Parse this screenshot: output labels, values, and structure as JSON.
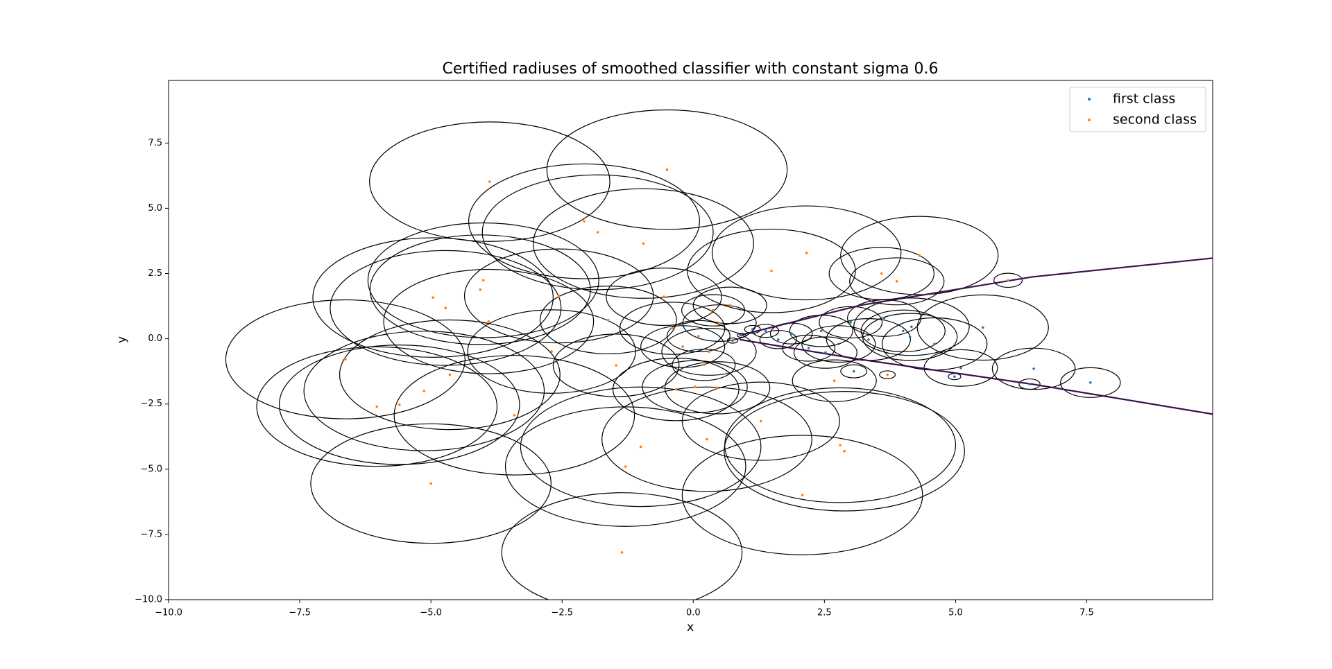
{
  "chart_data": {
    "type": "scatter",
    "title": "Certified radiuses of smoothed classifier with constant sigma 0.6",
    "x_label": "x",
    "y_label": "y",
    "xlim": [
      -10,
      9.9
    ],
    "ylim": [
      -10,
      9.9
    ],
    "xticks": [
      {
        "value": -10,
        "label": "−10.0"
      },
      {
        "value": -7.5,
        "label": "−7.5"
      },
      {
        "value": -5,
        "label": "−5.0"
      },
      {
        "value": -2.5,
        "label": "−2.5"
      },
      {
        "value": 0,
        "label": "0.0"
      },
      2.5,
      {
        "value": 5,
        "label": "5.0"
      },
      7.5
    ],
    "yticks": [
      {
        "value": -10,
        "label": "−10.0"
      },
      {
        "value": -7.5,
        "label": "−7.5"
      },
      {
        "value": -5,
        "label": "−5.0"
      },
      {
        "value": -2.5,
        "label": "−2.5"
      },
      {
        "value": 0,
        "label": "0.0"
      },
      2.5,
      {
        "value": 5,
        "label": "5.0"
      },
      7.5
    ],
    "legend": "upper right",
    "circle_color": "#000000",
    "series": [
      {
        "name": "first class",
        "color": "#1f77b4",
        "x": [
          7.57,
          6.49,
          6.41,
          5.52,
          5.1,
          4.98,
          4.6,
          4.16,
          4.13,
          4.0,
          3.64,
          3.34,
          3.0,
          2.77,
          2.44,
          2.2,
          1.87,
          1.62,
          1.38,
          1.13,
          0.92,
          0.75,
          3.06,
          2.52
        ],
        "y": [
          -1.68,
          -1.15,
          -1.74,
          0.43,
          -1.12,
          -1.45,
          -0.2,
          0.46,
          0.07,
          0.3,
          0.79,
          -0.03,
          0.63,
          -0.2,
          0.3,
          -0.36,
          0.2,
          -0.03,
          0.3,
          0.36,
          0.13,
          -0.07,
          -1.25,
          -0.53
        ],
        "radius": [
          0.57,
          0.79,
          0.2,
          1.25,
          0.7,
          0.12,
          1.0,
          1.1,
          0.9,
          0.8,
          0.7,
          0.8,
          0.6,
          0.7,
          0.6,
          0.5,
          0.4,
          0.35,
          0.25,
          0.15,
          0.08,
          0.1,
          0.25,
          0.6
        ]
      },
      {
        "name": "second class",
        "color": "#ff7f0e",
        "x": [
          -3.88,
          -0.5,
          -5.0,
          -1.36,
          2.08,
          -6.63,
          -6.03,
          -5.6,
          -5.13,
          -4.72,
          -4.96,
          -4.06,
          -4.0,
          -3.9,
          -4.64,
          -3.41,
          -2.7,
          -2.56,
          -2.08,
          -1.82,
          -1.62,
          -1.47,
          -1.0,
          -1.29,
          -0.95,
          -0.56,
          -0.33,
          0.26,
          0.03,
          0.46,
          0.7,
          1.29,
          1.49,
          2.16,
          2.8,
          2.88,
          2.69,
          3.59,
          3.88,
          4.31,
          6.0,
          3.7,
          0.38,
          0.2,
          0.1,
          -0.2,
          0.3,
          -0.4,
          0.5
        ],
        "y": [
          6.02,
          6.48,
          -5.55,
          -8.19,
          -5.99,
          -0.79,
          -2.6,
          -2.53,
          -2.0,
          1.18,
          1.58,
          1.88,
          2.24,
          0.66,
          -1.38,
          -2.93,
          -0.49,
          1.64,
          4.5,
          4.08,
          0.72,
          -1.02,
          -4.14,
          -4.9,
          3.65,
          1.61,
          -1.94,
          -3.85,
          -1.84,
          -1.88,
          1.28,
          -3.16,
          2.6,
          3.29,
          -4.08,
          -4.31,
          -1.61,
          2.5,
          2.2,
          3.19,
          2.24,
          -1.38,
          1.09,
          -1.0,
          0.1,
          -0.3,
          -0.5,
          0.4,
          0.6
        ],
        "radius": [
          2.29,
          2.29,
          2.29,
          2.29,
          2.29,
          2.28,
          2.29,
          2.29,
          2.29,
          2.2,
          2.29,
          2.1,
          2.2,
          2.0,
          2.1,
          2.29,
          1.6,
          1.8,
          2.2,
          2.2,
          1.3,
          1.2,
          2.29,
          2.29,
          2.1,
          1.1,
          1.2,
          2.0,
          1.0,
          1.0,
          0.7,
          1.5,
          1.6,
          1.8,
          2.2,
          2.29,
          0.8,
          1.0,
          0.9,
          1.5,
          0.27,
          0.15,
          0.6,
          0.6,
          0.6,
          0.8,
          0.9,
          1.0,
          0.7
        ]
      }
    ],
    "boundary_color": "#3b0f4f",
    "boundary": [
      {
        "x": [
          0.88,
          3.18,
          6.46,
          9.9
        ],
        "y": [
          0.13,
          1.28,
          2.37,
          3.09
        ]
      },
      {
        "x": [
          0.88,
          3.18,
          6.46,
          9.9
        ],
        "y": [
          -0.03,
          -0.79,
          -1.74,
          -2.89
        ]
      }
    ]
  }
}
